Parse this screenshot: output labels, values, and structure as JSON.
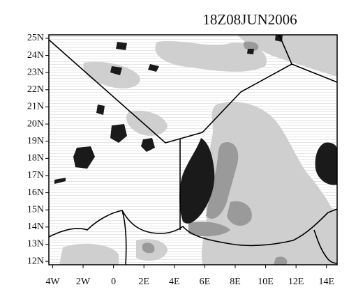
{
  "chart_data": {
    "type": "map",
    "title": "18Z08JUN2006",
    "xlim": [
      -4.25,
      14.7
    ],
    "ylim": [
      11.8,
      25.2
    ],
    "xticks": [
      {
        "value": -4,
        "label": "4W"
      },
      {
        "value": -2,
        "label": "2W"
      },
      0,
      {
        "value": 2,
        "label": "2E"
      },
      {
        "value": 4,
        "label": "4E"
      },
      {
        "value": 6,
        "label": "6E"
      },
      {
        "value": 8,
        "label": "8E"
      },
      {
        "value": 10,
        "label": "10E"
      },
      {
        "value": 12,
        "label": "12E"
      },
      {
        "value": 14,
        "label": "14E"
      }
    ],
    "yticks": [
      {
        "value": 12,
        "label": "12N"
      },
      {
        "value": 13,
        "label": "13N"
      },
      {
        "value": 14,
        "label": "14N"
      },
      {
        "value": 15,
        "label": "15N"
      },
      {
        "value": 16,
        "label": "16N"
      },
      {
        "value": 17,
        "label": "17N"
      },
      {
        "value": 18,
        "label": "18N"
      },
      {
        "value": 19,
        "label": "19N"
      },
      {
        "value": 20,
        "label": "20N"
      },
      {
        "value": 21,
        "label": "21N"
      },
      {
        "value": 22,
        "label": "22N"
      },
      {
        "value": 23,
        "label": "23N"
      },
      {
        "value": 24,
        "label": "24N"
      },
      {
        "value": 25,
        "label": "25N"
      }
    ]
  }
}
